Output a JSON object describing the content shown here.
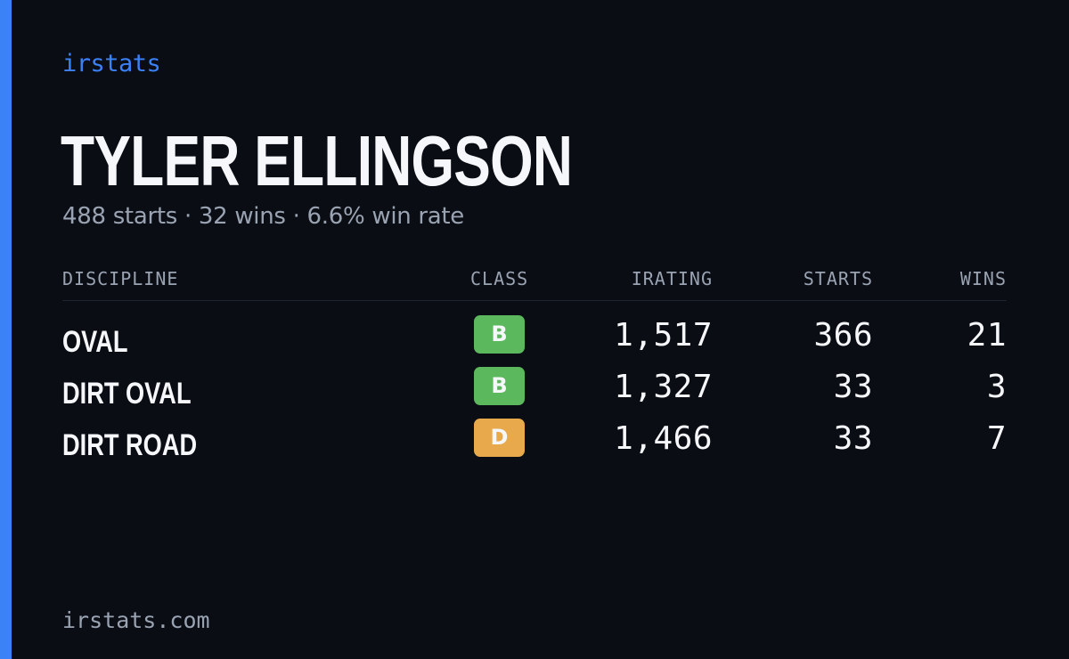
{
  "brand": "irstats",
  "driver": {
    "name": "TYLER ELLINGSON",
    "summary": "488 starts · 32 wins · 6.6% win rate"
  },
  "table": {
    "headers": {
      "discipline": "DISCIPLINE",
      "class": "CLASS",
      "irating": "IRATING",
      "starts": "STARTS",
      "wins": "WINS"
    },
    "rows": [
      {
        "discipline": "OVAL",
        "class": "B",
        "class_color": "#5cb85c",
        "irating": "1,517",
        "starts": "366",
        "wins": "21"
      },
      {
        "discipline": "DIRT OVAL",
        "class": "B",
        "class_color": "#5cb85c",
        "irating": "1,327",
        "starts": "33",
        "wins": "3"
      },
      {
        "discipline": "DIRT ROAD",
        "class": "D",
        "class_color": "#e8a94c",
        "irating": "1,466",
        "starts": "33",
        "wins": "7"
      }
    ]
  },
  "footer": "irstats.com",
  "colors": {
    "background": "#0a0d14",
    "accent": "#3b82f6",
    "text_primary": "#f5f7fa",
    "text_muted": "#9aa3b2"
  }
}
